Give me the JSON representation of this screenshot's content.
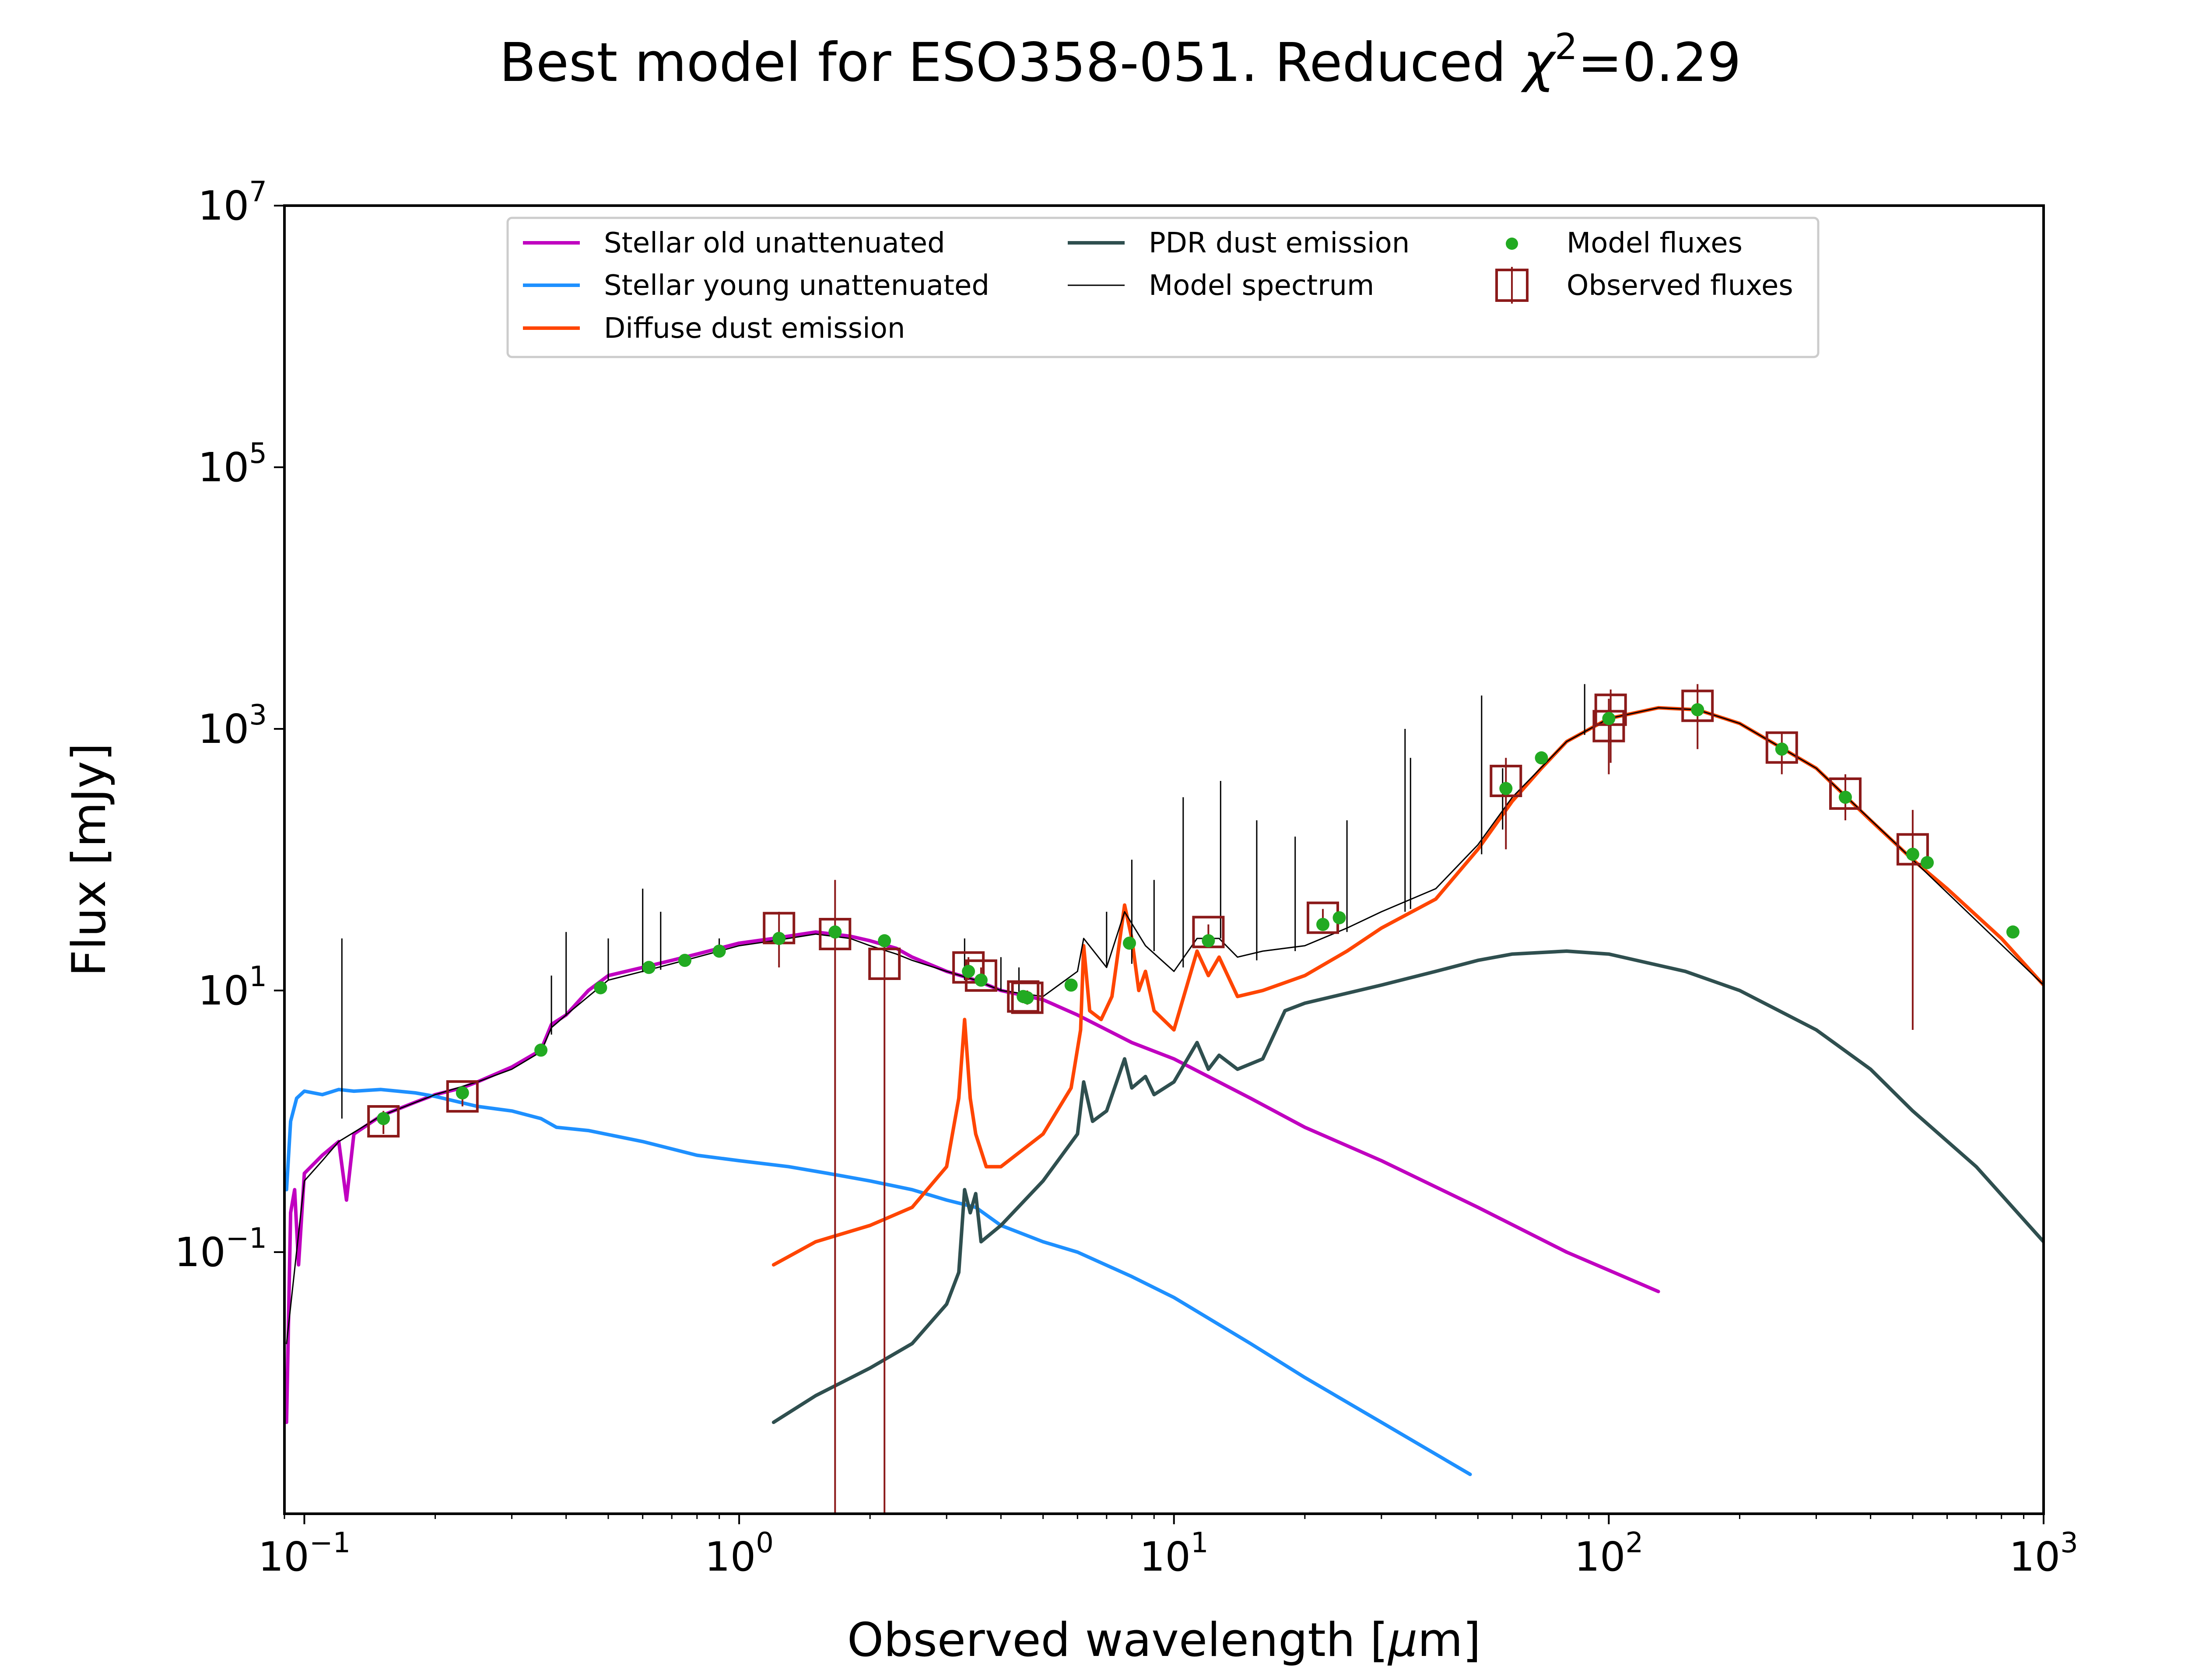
{
  "chart_data": {
    "type": "line",
    "title": {
      "prefix": "Best model for ESO358-051. Reduced ",
      "chi": "χ",
      "sup": "2",
      "suffix": "=0.29"
    },
    "xlabel": {
      "prefix": "Observed wavelength [",
      "mu": "μ",
      "suffix": "m]"
    },
    "ylabel": "Flux [mJy]",
    "x_scale": "log",
    "y_scale": "log",
    "xlim": [
      0.09,
      1000
    ],
    "ylim": [
      0.001,
      10000000
    ],
    "x_ticks": [
      {
        "value": 0.1,
        "base": "10",
        "exp": "−1"
      },
      {
        "value": 1,
        "base": "10",
        "exp": "0"
      },
      {
        "value": 10,
        "base": "10",
        "exp": "1"
      },
      {
        "value": 100,
        "base": "10",
        "exp": "2"
      },
      {
        "value": 1000,
        "base": "10",
        "exp": "3"
      }
    ],
    "y_ticks": [
      {
        "value": 0.1,
        "base": "10",
        "exp": "−1"
      },
      {
        "value": 10,
        "base": "10",
        "exp": "1"
      },
      {
        "value": 1000,
        "base": "10",
        "exp": "3"
      },
      {
        "value": 100000,
        "base": "10",
        "exp": "5"
      },
      {
        "value": 10000000,
        "base": "10",
        "exp": "7"
      }
    ],
    "legend_position": "top-center",
    "series": [
      {
        "name": "Stellar old unattenuated",
        "color": "#c000c0",
        "points": [
          [
            0.091,
            0.005
          ],
          [
            0.093,
            0.2
          ],
          [
            0.095,
            0.3
          ],
          [
            0.097,
            0.08
          ],
          [
            0.1,
            0.4
          ],
          [
            0.11,
            0.55
          ],
          [
            0.12,
            0.7
          ],
          [
            0.125,
            0.25
          ],
          [
            0.13,
            0.8
          ],
          [
            0.15,
            1.1
          ],
          [
            0.18,
            1.4
          ],
          [
            0.2,
            1.6
          ],
          [
            0.23,
            1.8
          ],
          [
            0.25,
            2.0
          ],
          [
            0.3,
            2.6
          ],
          [
            0.35,
            3.5
          ],
          [
            0.37,
            5.5
          ],
          [
            0.4,
            6.5
          ],
          [
            0.45,
            10
          ],
          [
            0.5,
            13
          ],
          [
            0.6,
            15
          ],
          [
            0.7,
            17
          ],
          [
            0.8,
            19
          ],
          [
            1.0,
            23
          ],
          [
            1.2,
            25
          ],
          [
            1.5,
            28
          ],
          [
            1.8,
            26
          ],
          [
            2.0,
            24
          ],
          [
            2.3,
            21
          ],
          [
            2.5,
            18
          ],
          [
            3.0,
            14
          ],
          [
            3.5,
            12
          ],
          [
            4.0,
            10
          ],
          [
            5.0,
            8.5
          ],
          [
            6.0,
            6.5
          ],
          [
            8.0,
            4.0
          ],
          [
            10,
            3.0
          ],
          [
            15,
            1.5
          ],
          [
            20,
            0.9
          ],
          [
            30,
            0.5
          ],
          [
            50,
            0.22
          ],
          [
            80,
            0.1
          ],
          [
            130,
            0.05
          ]
        ]
      },
      {
        "name": "Stellar young unattenuated",
        "color": "#1e90ff",
        "points": [
          [
            0.091,
            0.3
          ],
          [
            0.093,
            1.0
          ],
          [
            0.096,
            1.5
          ],
          [
            0.1,
            1.7
          ],
          [
            0.11,
            1.6
          ],
          [
            0.12,
            1.75
          ],
          [
            0.13,
            1.7
          ],
          [
            0.15,
            1.75
          ],
          [
            0.18,
            1.65
          ],
          [
            0.2,
            1.55
          ],
          [
            0.25,
            1.3
          ],
          [
            0.3,
            1.2
          ],
          [
            0.35,
            1.05
          ],
          [
            0.38,
            0.9
          ],
          [
            0.45,
            0.85
          ],
          [
            0.6,
            0.7
          ],
          [
            0.8,
            0.55
          ],
          [
            1.0,
            0.5
          ],
          [
            1.3,
            0.45
          ],
          [
            1.6,
            0.4
          ],
          [
            2.0,
            0.35
          ],
          [
            2.5,
            0.3
          ],
          [
            3.0,
            0.25
          ],
          [
            3.5,
            0.22
          ],
          [
            4.0,
            0.16
          ],
          [
            5.0,
            0.12
          ],
          [
            6.0,
            0.1
          ],
          [
            8.0,
            0.065
          ],
          [
            10,
            0.045
          ],
          [
            15,
            0.02
          ],
          [
            20,
            0.011
          ],
          [
            30,
            0.005
          ],
          [
            48,
            0.002
          ]
        ]
      },
      {
        "name": "Diffuse dust emission",
        "color": "#ff4500",
        "points": [
          [
            1.2,
            0.08
          ],
          [
            1.5,
            0.12
          ],
          [
            2.0,
            0.16
          ],
          [
            2.5,
            0.22
          ],
          [
            3.0,
            0.45
          ],
          [
            3.2,
            1.5
          ],
          [
            3.3,
            6
          ],
          [
            3.4,
            1.5
          ],
          [
            3.5,
            0.8
          ],
          [
            3.7,
            0.45
          ],
          [
            4.0,
            0.45
          ],
          [
            5.0,
            0.8
          ],
          [
            5.8,
            1.8
          ],
          [
            6.1,
            5
          ],
          [
            6.2,
            22
          ],
          [
            6.4,
            7
          ],
          [
            6.8,
            6
          ],
          [
            7.2,
            9
          ],
          [
            7.7,
            45
          ],
          [
            8.0,
            25
          ],
          [
            8.3,
            10
          ],
          [
            8.6,
            14
          ],
          [
            9.0,
            7
          ],
          [
            10,
            5
          ],
          [
            11.3,
            20
          ],
          [
            12,
            13
          ],
          [
            12.7,
            18
          ],
          [
            14,
            9
          ],
          [
            16,
            10
          ],
          [
            20,
            13
          ],
          [
            25,
            20
          ],
          [
            30,
            30
          ],
          [
            40,
            50
          ],
          [
            50,
            120
          ],
          [
            60,
            280
          ],
          [
            70,
            500
          ],
          [
            80,
            800
          ],
          [
            100,
            1200
          ],
          [
            130,
            1450
          ],
          [
            160,
            1400
          ],
          [
            200,
            1100
          ],
          [
            300,
            500
          ],
          [
            400,
            200
          ],
          [
            500,
            100
          ],
          [
            600,
            60
          ],
          [
            800,
            25
          ],
          [
            1000,
            11
          ]
        ]
      },
      {
        "name": "PDR dust emission",
        "color": "#2f4f4f",
        "points": [
          [
            1.2,
            0.005
          ],
          [
            1.5,
            0.008
          ],
          [
            2.0,
            0.013
          ],
          [
            2.5,
            0.02
          ],
          [
            3.0,
            0.04
          ],
          [
            3.2,
            0.07
          ],
          [
            3.3,
            0.3
          ],
          [
            3.4,
            0.2
          ],
          [
            3.5,
            0.28
          ],
          [
            3.6,
            0.12
          ],
          [
            4.0,
            0.16
          ],
          [
            5.0,
            0.35
          ],
          [
            6.0,
            0.8
          ],
          [
            6.2,
            2.0
          ],
          [
            6.5,
            1.0
          ],
          [
            7.0,
            1.2
          ],
          [
            7.7,
            3.0
          ],
          [
            8.0,
            1.8
          ],
          [
            8.6,
            2.2
          ],
          [
            9.0,
            1.6
          ],
          [
            10,
            2.0
          ],
          [
            11.3,
            4.0
          ],
          [
            12,
            2.5
          ],
          [
            12.7,
            3.2
          ],
          [
            14,
            2.5
          ],
          [
            16,
            3.0
          ],
          [
            18,
            7
          ],
          [
            20,
            8
          ],
          [
            30,
            11
          ],
          [
            40,
            14
          ],
          [
            50,
            17
          ],
          [
            60,
            19
          ],
          [
            80,
            20
          ],
          [
            100,
            19
          ],
          [
            150,
            14
          ],
          [
            200,
            10
          ],
          [
            300,
            5
          ],
          [
            400,
            2.5
          ],
          [
            500,
            1.2
          ],
          [
            700,
            0.45
          ],
          [
            1000,
            0.12
          ]
        ]
      },
      {
        "name": "Model spectrum",
        "color": "#000000",
        "points": [
          [
            0.091,
            0.02
          ],
          [
            0.1,
            0.35
          ],
          [
            0.11,
            0.5
          ],
          [
            0.12,
            0.7
          ],
          [
            0.15,
            1.1
          ],
          [
            0.2,
            1.6
          ],
          [
            0.25,
            2.0
          ],
          [
            0.3,
            2.5
          ],
          [
            0.35,
            3.4
          ],
          [
            0.37,
            5.2
          ],
          [
            0.4,
            6.5
          ],
          [
            0.45,
            9
          ],
          [
            0.5,
            12
          ],
          [
            0.6,
            14
          ],
          [
            0.7,
            16
          ],
          [
            0.8,
            18
          ],
          [
            1.0,
            22
          ],
          [
            1.2,
            24
          ],
          [
            1.5,
            27
          ],
          [
            1.8,
            25
          ],
          [
            2.0,
            22
          ],
          [
            2.3,
            19
          ],
          [
            2.5,
            17
          ],
          [
            3.0,
            14
          ],
          [
            3.5,
            12
          ],
          [
            4.0,
            10
          ],
          [
            5.0,
            9
          ],
          [
            6.0,
            14
          ],
          [
            6.2,
            25
          ],
          [
            7.0,
            15
          ],
          [
            7.7,
            40
          ],
          [
            8.6,
            22
          ],
          [
            10,
            14
          ],
          [
            11.3,
            25
          ],
          [
            12.7,
            25
          ],
          [
            14,
            18
          ],
          [
            16,
            20
          ],
          [
            20,
            22
          ],
          [
            25,
            30
          ],
          [
            30,
            40
          ],
          [
            40,
            60
          ],
          [
            50,
            130
          ],
          [
            60,
            300
          ],
          [
            80,
            800
          ],
          [
            100,
            1200
          ],
          [
            130,
            1450
          ],
          [
            160,
            1400
          ],
          [
            200,
            1100
          ],
          [
            300,
            500
          ],
          [
            500,
            100
          ],
          [
            1000,
            11
          ]
        ],
        "lines": [
          [
            0.122,
            1.05,
            25
          ],
          [
            0.37,
            4.6,
            13
          ],
          [
            0.4,
            6.4,
            28
          ],
          [
            0.5,
            12,
            25
          ],
          [
            0.6,
            13.8,
            60
          ],
          [
            0.66,
            14.4,
            40
          ],
          [
            0.9,
            19,
            25
          ],
          [
            3.3,
            12,
            25
          ],
          [
            4.0,
            10,
            18
          ],
          [
            4.4,
            9,
            15
          ],
          [
            7.0,
            15,
            40
          ],
          [
            8.0,
            16,
            100
          ],
          [
            9.0,
            20,
            70
          ],
          [
            10.5,
            15,
            300
          ],
          [
            12.8,
            25,
            400
          ],
          [
            15.5,
            17,
            200
          ],
          [
            19,
            20,
            150
          ],
          [
            25,
            28,
            200
          ],
          [
            34,
            40,
            1000
          ],
          [
            35,
            42,
            600
          ],
          [
            51,
            110,
            1800
          ],
          [
            57,
            170,
            500
          ],
          [
            88,
            900,
            2200
          ]
        ]
      }
    ],
    "model_fluxes": {
      "name": "Model fluxes",
      "color": "#22aa22",
      "points": [
        [
          0.152,
          1.05
        ],
        [
          0.231,
          1.65
        ],
        [
          0.35,
          3.5
        ],
        [
          0.48,
          10.5
        ],
        [
          0.62,
          15
        ],
        [
          0.75,
          17
        ],
        [
          0.9,
          20
        ],
        [
          1.235,
          25
        ],
        [
          1.662,
          28
        ],
        [
          2.159,
          24
        ],
        [
          3.368,
          14
        ],
        [
          3.6,
          12
        ],
        [
          4.5,
          9
        ],
        [
          4.6,
          8.8
        ],
        [
          5.8,
          11
        ],
        [
          7.9,
          23
        ],
        [
          12.0,
          24
        ],
        [
          22,
          32
        ],
        [
          24,
          36
        ],
        [
          58,
          350
        ],
        [
          70,
          600
        ],
        [
          100,
          1200
        ],
        [
          160,
          1400
        ],
        [
          250,
          700
        ],
        [
          350,
          300
        ],
        [
          500,
          110
        ],
        [
          540,
          95
        ],
        [
          850,
          28
        ]
      ]
    },
    "observed_fluxes": {
      "name": "Observed fluxes",
      "color": "#8b1a1a",
      "points": [
        {
          "x": 0.152,
          "y": 1.0,
          "lo": 0.8,
          "hi": 1.2
        },
        {
          "x": 0.231,
          "y": 1.55,
          "lo": 1.3,
          "hi": 1.8
        },
        {
          "x": 1.235,
          "y": 30,
          "lo": 15,
          "hi": 40
        },
        {
          "x": 1.662,
          "y": 27,
          "lo": 0.001,
          "hi": 70
        },
        {
          "x": 2.159,
          "y": 16,
          "lo": 0.001,
          "hi": 25
        },
        {
          "x": 3.368,
          "y": 15,
          "lo": 12,
          "hi": 18
        },
        {
          "x": 3.6,
          "y": 13,
          "lo": 11,
          "hi": 15
        },
        {
          "x": 4.5,
          "y": 9,
          "lo": 8,
          "hi": 10
        },
        {
          "x": 4.6,
          "y": 8.8,
          "lo": 7.8,
          "hi": 10
        },
        {
          "x": 12.0,
          "y": 28,
          "lo": 22,
          "hi": 32
        },
        {
          "x": 22,
          "y": 36,
          "lo": 30,
          "hi": 42
        },
        {
          "x": 58,
          "y": 400,
          "lo": 120,
          "hi": 600
        },
        {
          "x": 100,
          "y": 1050,
          "lo": 450,
          "hi": 1700
        },
        {
          "x": 101,
          "y": 1400,
          "lo": 550,
          "hi": 2000
        },
        {
          "x": 160,
          "y": 1500,
          "lo": 700,
          "hi": 2200
        },
        {
          "x": 250,
          "y": 720,
          "lo": 450,
          "hi": 950
        },
        {
          "x": 350,
          "y": 320,
          "lo": 200,
          "hi": 450
        },
        {
          "x": 500,
          "y": 120,
          "lo": 5,
          "hi": 240
        }
      ]
    }
  }
}
